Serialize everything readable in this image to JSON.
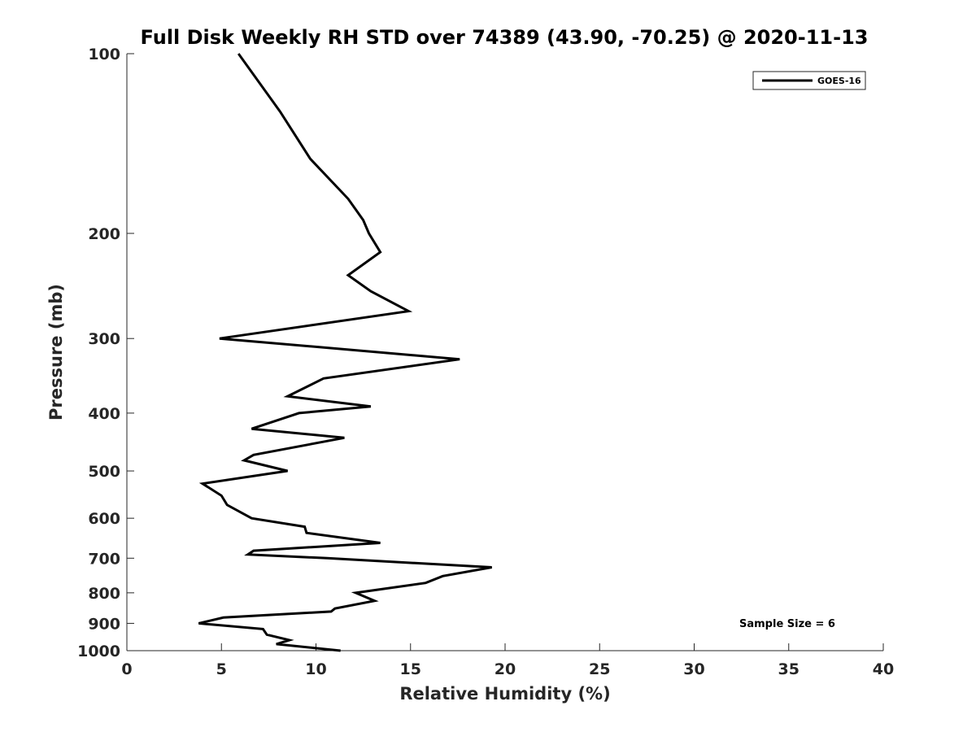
{
  "chart_data": {
    "type": "line",
    "title": "Full Disk Weekly RH STD over 74389 (43.90, -70.25) @ 2020-11-13",
    "xlabel": "Relative Humidity (%)",
    "ylabel": "Pressure (mb)",
    "xlim": [
      0,
      40
    ],
    "ylim": [
      100,
      1000
    ],
    "y_scale": "log",
    "y_reversed": true,
    "xticks": [
      "0",
      "5",
      "10",
      "15",
      "20",
      "25",
      "30",
      "35",
      "40"
    ],
    "yticks": [
      "100",
      "200",
      "300",
      "400",
      "500",
      "600",
      "700",
      "800",
      "900",
      "1000"
    ],
    "grid": false,
    "legend_position": "top-right",
    "annotation": "Sample Size = 6",
    "series": [
      {
        "name": "GOES-16",
        "color": "#000000",
        "points": [
          [
            5.9,
            100
          ],
          [
            8.1,
            125
          ],
          [
            9.7,
            150
          ],
          [
            11.7,
            175
          ],
          [
            12.5,
            190
          ],
          [
            12.8,
            200
          ],
          [
            13.4,
            215
          ],
          [
            11.7,
            235
          ],
          [
            12.9,
            250
          ],
          [
            14.9,
            270
          ],
          [
            4.9,
            300
          ],
          [
            17.6,
            325
          ],
          [
            10.4,
            350
          ],
          [
            8.5,
            375
          ],
          [
            12.9,
            390
          ],
          [
            9.1,
            400
          ],
          [
            6.6,
            425
          ],
          [
            11.5,
            440
          ],
          [
            6.7,
            470
          ],
          [
            6.2,
            480
          ],
          [
            8.5,
            500
          ],
          [
            4.0,
            525
          ],
          [
            5.0,
            550
          ],
          [
            5.3,
            570
          ],
          [
            6.6,
            600
          ],
          [
            9.4,
            620
          ],
          [
            9.5,
            635
          ],
          [
            13.4,
            660
          ],
          [
            6.7,
            680
          ],
          [
            6.4,
            690
          ],
          [
            10.6,
            700
          ],
          [
            19.3,
            725
          ],
          [
            16.7,
            750
          ],
          [
            15.8,
            770
          ],
          [
            12.1,
            800
          ],
          [
            13.1,
            825
          ],
          [
            11.0,
            850
          ],
          [
            10.8,
            860
          ],
          [
            5.1,
            880
          ],
          [
            3.8,
            900
          ],
          [
            7.2,
            920
          ],
          [
            7.4,
            940
          ],
          [
            8.6,
            960
          ],
          [
            7.9,
            975
          ],
          [
            11.3,
            1000
          ]
        ]
      }
    ]
  }
}
